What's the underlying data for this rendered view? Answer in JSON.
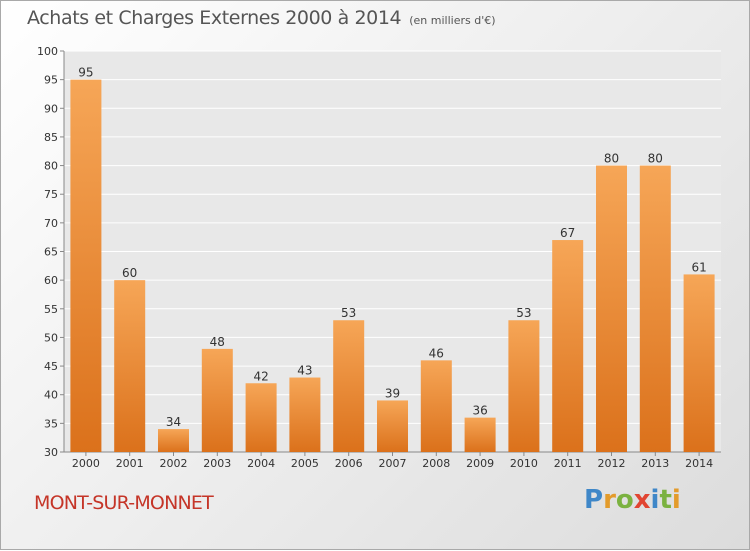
{
  "chart_data": {
    "type": "bar",
    "title": "Achats et Charges Externes 2000 à 2014",
    "subtitle": "(en milliers d'€)",
    "categories": [
      "2000",
      "2001",
      "2002",
      "2003",
      "2004",
      "2005",
      "2006",
      "2007",
      "2008",
      "2009",
      "2010",
      "2011",
      "2012",
      "2013",
      "2014"
    ],
    "values": [
      95,
      60,
      34,
      48,
      42,
      43,
      53,
      39,
      46,
      36,
      53,
      67,
      80,
      80,
      61
    ],
    "ylim": [
      30,
      100
    ],
    "yticks": [
      30,
      35,
      40,
      45,
      50,
      55,
      60,
      65,
      70,
      75,
      80,
      85,
      90,
      95,
      100
    ],
    "xlabel": "",
    "ylabel": "",
    "grid": true,
    "bar_color": "#f0913a"
  },
  "commune": "MONT-SUR-MONNET",
  "logo": {
    "letters": [
      "P",
      "r",
      "o",
      "x",
      "i",
      "t",
      "i"
    ],
    "colors": [
      "#3f87c8",
      "#e39b2b",
      "#7bb240",
      "#e14532",
      "#3f87c8",
      "#7bb240",
      "#e39b2b"
    ]
  }
}
